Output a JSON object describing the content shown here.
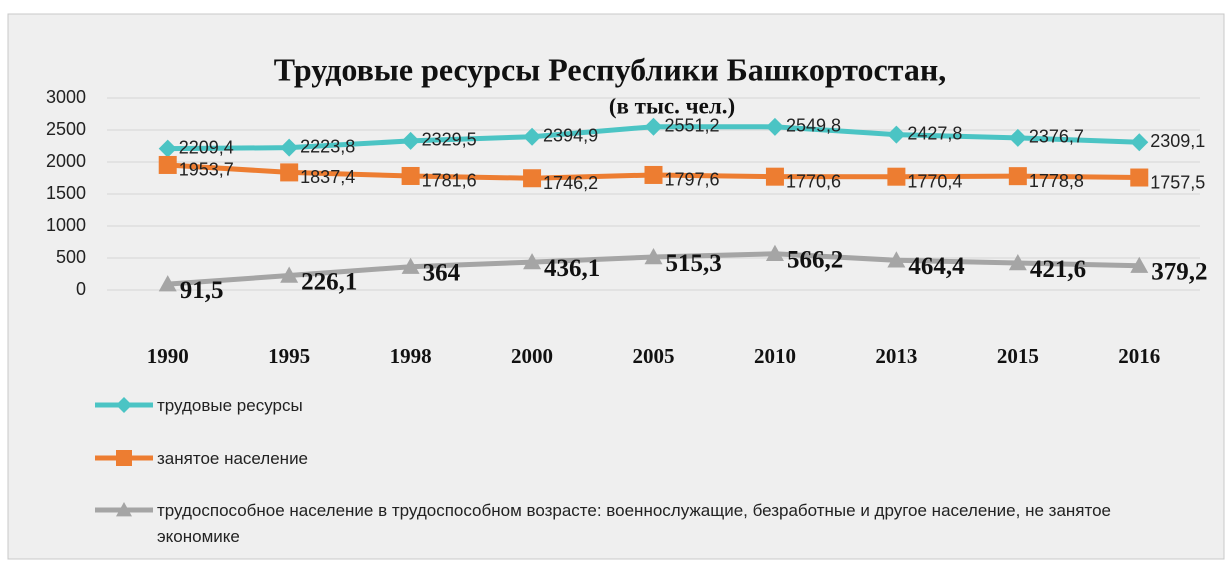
{
  "chart_data": {
    "type": "line",
    "title": "Трудовые ресурсы Республики Башкортостан,",
    "subtitle": "(в тыс. чел.)",
    "categories": [
      "1990",
      "1995",
      "1998",
      "2000",
      "2005",
      "2010",
      "2013",
      "2015",
      "2016"
    ],
    "ylim": [
      0,
      3000
    ],
    "yticks": [
      0,
      500,
      1000,
      1500,
      2000,
      2500,
      3000
    ],
    "grid": true,
    "series": [
      {
        "name": "трудовые ресурсы",
        "color": "#4bc4c4",
        "marker": "diamond",
        "values": [
          2209.4,
          2223.8,
          2329.5,
          2394.9,
          2551.2,
          2549.8,
          2427.8,
          2376.7,
          2309.1
        ],
        "value_labels": [
          "2209,4",
          "2223,8",
          "2329,5",
          "2394,9",
          "2551,2",
          "2549,8",
          "2427,8",
          "2376,7",
          "2309,1"
        ]
      },
      {
        "name": "занятое население",
        "color": "#ed7d31",
        "marker": "square",
        "values": [
          1953.7,
          1837.4,
          1781.6,
          1746.2,
          1797.6,
          1770.6,
          1770.4,
          1778.8,
          1757.5
        ],
        "value_labels": [
          "1953,7",
          "1837,4",
          "1781,6",
          "1746,2",
          "1797,6",
          "1770,6",
          "1770,4",
          "1778,8",
          "1757,5"
        ]
      },
      {
        "name": "трудоспособное население в трудоспособном возрасте: военнослужащие, безработные и другое население, не занятое  экономике",
        "color": "#a5a5a5",
        "marker": "triangle",
        "values": [
          91.5,
          226.1,
          364,
          436.1,
          515.3,
          566.2,
          464.4,
          421.6,
          379.2
        ],
        "value_labels": [
          "91,5",
          "226,1",
          "364",
          "436,1",
          "515,3",
          "566,2",
          "464,4",
          "421,6",
          "379,2"
        ]
      }
    ]
  }
}
